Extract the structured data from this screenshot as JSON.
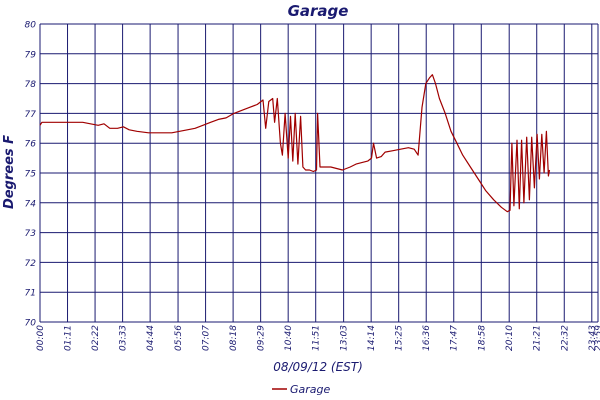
{
  "chart_data": {
    "type": "line",
    "title": "Garage",
    "xlabel": "08/09/12 (EST)",
    "ylabel": "Degrees F",
    "ylim": [
      70,
      80
    ],
    "xlim_minutes": [
      0,
      1439
    ],
    "y_ticks": [
      "70",
      "71",
      "72",
      "73",
      "74",
      "75",
      "76",
      "77",
      "78",
      "79",
      "80"
    ],
    "x_ticks": [
      "00:00",
      "01:11",
      "02:22",
      "03:33",
      "04:44",
      "05:56",
      "07:07",
      "08:18",
      "09:29",
      "10:40",
      "11:51",
      "13:03",
      "14:14",
      "15:25",
      "16:36",
      "17:47",
      "18:58",
      "20:10",
      "21:21",
      "22:32",
      "23:43",
      "23:59"
    ],
    "grid": true,
    "legend_position": "bottom-center",
    "colors": {
      "series": "#a00000",
      "grid": "#1a1a70",
      "text": "#1a1a70"
    },
    "series": [
      {
        "name": "Garage",
        "points": [
          [
            0,
            76.6
          ],
          [
            5,
            76.7
          ],
          [
            30,
            76.7
          ],
          [
            60,
            76.7
          ],
          [
            90,
            76.7
          ],
          [
            110,
            76.7
          ],
          [
            130,
            76.65
          ],
          [
            150,
            76.6
          ],
          [
            165,
            76.65
          ],
          [
            180,
            76.5
          ],
          [
            200,
            76.5
          ],
          [
            215,
            76.55
          ],
          [
            230,
            76.45
          ],
          [
            250,
            76.4
          ],
          [
            280,
            76.35
          ],
          [
            310,
            76.35
          ],
          [
            340,
            76.35
          ],
          [
            360,
            76.4
          ],
          [
            380,
            76.45
          ],
          [
            400,
            76.5
          ],
          [
            420,
            76.6
          ],
          [
            440,
            76.7
          ],
          [
            460,
            76.8
          ],
          [
            480,
            76.85
          ],
          [
            500,
            77.0
          ],
          [
            520,
            77.1
          ],
          [
            540,
            77.2
          ],
          [
            560,
            77.3
          ],
          [
            575,
            77.45
          ],
          [
            582,
            76.5
          ],
          [
            590,
            77.4
          ],
          [
            600,
            77.5
          ],
          [
            605,
            76.7
          ],
          [
            612,
            77.5
          ],
          [
            620,
            76.0
          ],
          [
            625,
            75.6
          ],
          [
            632,
            77.0
          ],
          [
            640,
            75.5
          ],
          [
            646,
            76.9
          ],
          [
            652,
            75.4
          ],
          [
            658,
            77.0
          ],
          [
            665,
            75.3
          ],
          [
            672,
            76.9
          ],
          [
            678,
            75.2
          ],
          [
            685,
            75.1
          ],
          [
            695,
            75.1
          ],
          [
            705,
            75.05
          ],
          [
            713,
            75.1
          ],
          [
            716,
            77.0
          ],
          [
            722,
            75.2
          ],
          [
            735,
            75.2
          ],
          [
            750,
            75.2
          ],
          [
            765,
            75.15
          ],
          [
            780,
            75.1
          ],
          [
            800,
            75.2
          ],
          [
            815,
            75.3
          ],
          [
            830,
            75.35
          ],
          [
            845,
            75.4
          ],
          [
            855,
            75.5
          ],
          [
            860,
            76.0
          ],
          [
            868,
            75.5
          ],
          [
            880,
            75.55
          ],
          [
            890,
            75.7
          ],
          [
            910,
            75.75
          ],
          [
            930,
            75.8
          ],
          [
            950,
            75.85
          ],
          [
            965,
            75.8
          ],
          [
            975,
            75.6
          ],
          [
            985,
            77.2
          ],
          [
            995,
            78.0
          ],
          [
            1005,
            78.2
          ],
          [
            1012,
            78.3
          ],
          [
            1020,
            78.0
          ],
          [
            1030,
            77.5
          ],
          [
            1045,
            77.0
          ],
          [
            1060,
            76.4
          ],
          [
            1075,
            76.0
          ],
          [
            1090,
            75.6
          ],
          [
            1110,
            75.2
          ],
          [
            1130,
            74.8
          ],
          [
            1150,
            74.4
          ],
          [
            1170,
            74.1
          ],
          [
            1190,
            73.85
          ],
          [
            1205,
            73.7
          ],
          [
            1212,
            73.75
          ],
          [
            1217,
            76.0
          ],
          [
            1222,
            73.9
          ],
          [
            1230,
            76.1
          ],
          [
            1236,
            73.8
          ],
          [
            1242,
            76.1
          ],
          [
            1248,
            74.0
          ],
          [
            1255,
            76.2
          ],
          [
            1262,
            74.1
          ],
          [
            1268,
            76.2
          ],
          [
            1275,
            74.5
          ],
          [
            1282,
            76.3
          ],
          [
            1288,
            74.8
          ],
          [
            1294,
            76.3
          ],
          [
            1300,
            75.0
          ],
          [
            1306,
            76.4
          ],
          [
            1311,
            74.9
          ],
          [
            1314,
            75.1
          ]
        ]
      }
    ],
    "legend": [
      {
        "label": "Garage"
      }
    ]
  }
}
